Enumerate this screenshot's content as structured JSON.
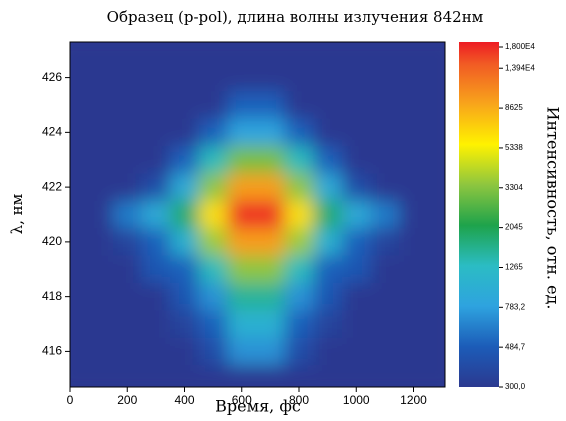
{
  "chart_data": {
    "type": "heatmap",
    "title": "Образец (p-pol), длина волны излучения 842нм",
    "x_label": "Время, фс",
    "y_label": "λ, нм",
    "colorbar_label": "Интенсивность, отн. ед.",
    "x": [
      0,
      100,
      200,
      300,
      400,
      500,
      600,
      700,
      800,
      900,
      1000,
      1100,
      1200,
      1300
    ],
    "y": [
      427,
      426,
      425,
      424,
      423,
      422,
      421,
      420,
      419,
      418,
      417,
      416,
      415
    ],
    "z": [
      [
        300,
        300,
        300,
        300,
        300,
        300,
        300,
        300,
        300,
        300,
        300,
        300,
        300,
        300
      ],
      [
        300,
        300,
        300,
        300,
        300,
        300,
        300,
        300,
        300,
        300,
        300,
        300,
        300,
        300
      ],
      [
        300,
        300,
        300,
        300,
        300,
        300,
        500,
        500,
        300,
        300,
        300,
        300,
        300,
        300
      ],
      [
        300,
        300,
        300,
        300,
        300,
        500,
        800,
        800,
        500,
        300,
        300,
        300,
        300,
        300
      ],
      [
        300,
        300,
        300,
        300,
        500,
        1300,
        3000,
        3000,
        1300,
        500,
        300,
        300,
        300,
        300
      ],
      [
        300,
        300,
        300,
        400,
        900,
        3300,
        9000,
        9000,
        3300,
        900,
        400,
        300,
        300,
        300
      ],
      [
        300,
        300,
        600,
        900,
        1800,
        6000,
        17000,
        17000,
        6000,
        1800,
        900,
        600,
        300,
        300
      ],
      [
        300,
        300,
        350,
        500,
        1000,
        3500,
        9000,
        9000,
        3500,
        1000,
        500,
        350,
        300,
        300
      ],
      [
        300,
        300,
        300,
        450,
        500,
        1300,
        3300,
        3300,
        1300,
        500,
        450,
        300,
        300,
        300
      ],
      [
        300,
        300,
        300,
        300,
        450,
        700,
        1500,
        1500,
        700,
        450,
        300,
        300,
        300,
        300
      ],
      [
        300,
        300,
        300,
        300,
        350,
        500,
        1000,
        1000,
        500,
        350,
        300,
        300,
        300,
        300
      ],
      [
        300,
        300,
        300,
        300,
        300,
        400,
        700,
        700,
        400,
        300,
        300,
        300,
        300,
        300
      ],
      [
        300,
        300,
        300,
        300,
        300,
        300,
        300,
        300,
        300,
        300,
        300,
        300,
        300,
        300
      ]
    ],
    "xlim": [
      0,
      1310
    ],
    "ylim": [
      414.7,
      427.3
    ],
    "xticks": [
      0,
      200,
      400,
      600,
      800,
      1000,
      1200
    ],
    "yticks": [
      416,
      418,
      420,
      422,
      424,
      426
    ],
    "zlim": [
      300,
      18000
    ],
    "zscale": "log",
    "zticks": [
      {
        "value": 300,
        "label": "300,0"
      },
      {
        "value": 484.7,
        "label": "484,7"
      },
      {
        "value": 783.2,
        "label": "783,2"
      },
      1265,
      2045,
      3304,
      5338,
      8625,
      {
        "value": 13940,
        "label": "1,394E4"
      },
      {
        "value": 18000,
        "label": "1,800E4"
      }
    ],
    "zcolors": [
      "#2b3990",
      "#1c5cb8",
      "#2ea3df",
      "#2bbcc4",
      "#1ea34b",
      "#8dc63f",
      "#fff200",
      "#f8a51b",
      "#f15a24",
      "#ed1c24"
    ]
  }
}
